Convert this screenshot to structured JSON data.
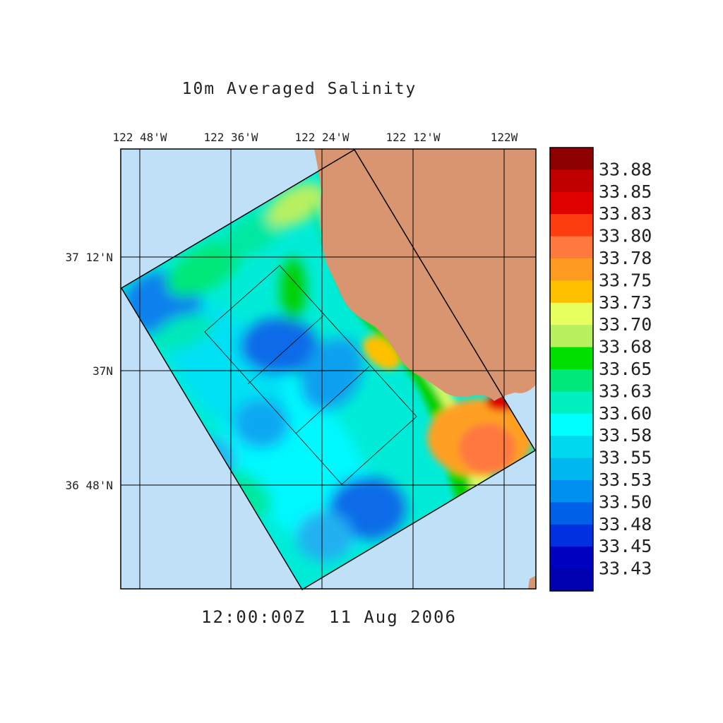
{
  "title": "10m Averaged Salinity",
  "timestamp": "12:00:00Z  11 Aug 2006",
  "lon_labels": [
    "122 48'W",
    "122 36'W",
    "122 24'W",
    "122 12'W",
    "122W"
  ],
  "lat_labels": [
    "37 12'N",
    "37N",
    "36 48'N"
  ],
  "colorbar": {
    "labels": [
      "33.88",
      "33.85",
      "33.83",
      "33.80",
      "33.78",
      "33.75",
      "33.73",
      "33.70",
      "33.68",
      "33.65",
      "33.63",
      "33.60",
      "33.58",
      "33.55",
      "33.53",
      "33.50",
      "33.48",
      "33.45",
      "33.43"
    ],
    "colors": [
      "#8c0000",
      "#c00000",
      "#e00000",
      "#ff3c10",
      "#ff7840",
      "#ff9a20",
      "#ffc000",
      "#e8ff60",
      "#b8f060",
      "#00e000",
      "#00e878",
      "#00f0c0",
      "#00ffff",
      "#00d8f0",
      "#00b8f0",
      "#0090f0",
      "#0060e8",
      "#0030e0",
      "#0000c0"
    ]
  },
  "colors": {
    "ocean": "#c0e0f8",
    "land": "#d99470",
    "grid": "#000000"
  }
}
